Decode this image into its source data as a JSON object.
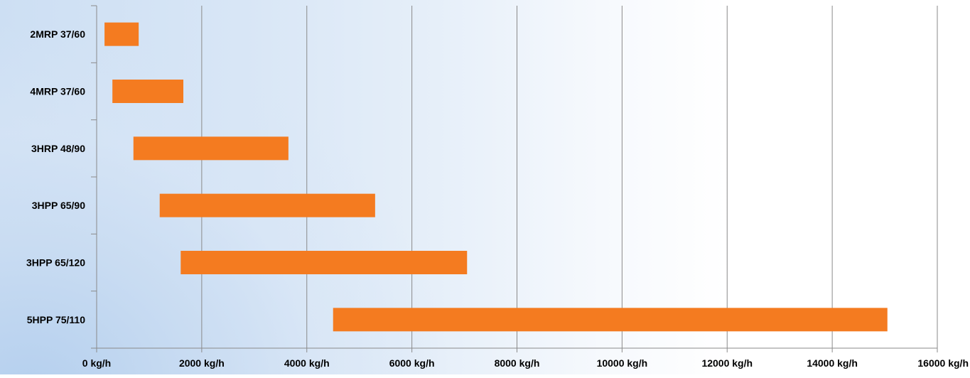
{
  "chart_data": {
    "type": "bar",
    "orientation": "horizontal-range",
    "categories": [
      "2MRP 37/60",
      "4MRP 37/60",
      "3HRP 48/90",
      "3HPP 65/90",
      "3HPP 65/120",
      "5HPP 75/110"
    ],
    "ranges": [
      {
        "min": 150,
        "max": 800
      },
      {
        "min": 300,
        "max": 1650
      },
      {
        "min": 700,
        "max": 3650
      },
      {
        "min": 1200,
        "max": 5300
      },
      {
        "min": 1600,
        "max": 7050
      },
      {
        "min": 4500,
        "max": 15050
      }
    ],
    "xlim": [
      0,
      16000
    ],
    "x_ticks": [
      0,
      2000,
      4000,
      6000,
      8000,
      10000,
      12000,
      14000,
      16000
    ],
    "x_tick_labels": [
      "0 kg/h",
      "2000 kg/h",
      "4000 kg/h",
      "6000 kg/h",
      "8000 kg/h",
      "10000 kg/h",
      "12000 kg/h",
      "14000 kg/h",
      "16000 kg/h"
    ],
    "bar_color": "#f47b20",
    "grid": true,
    "grid_color": "#8a8a8a",
    "legend": false
  }
}
